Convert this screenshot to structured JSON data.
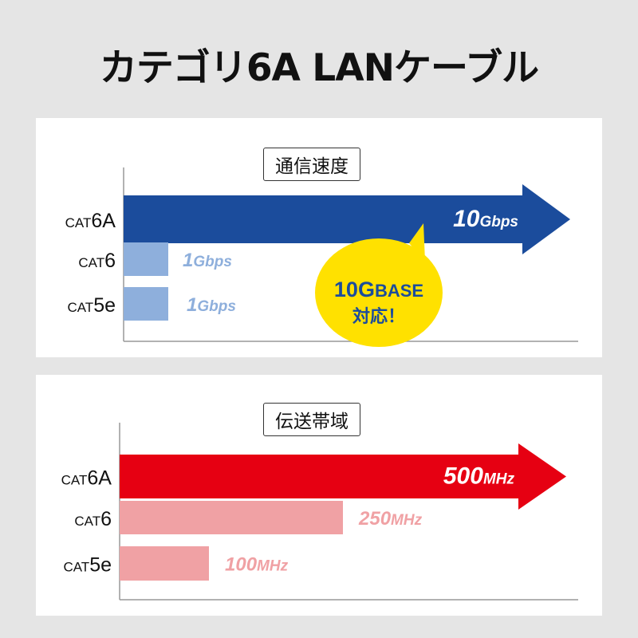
{
  "title": "カテゴリ6A LANケーブル",
  "chart_data": [
    {
      "type": "bar",
      "title": "通信速度",
      "unit": "Gbps",
      "categories": [
        "CAT6A",
        "CAT6",
        "CAT5e"
      ],
      "category_parts": [
        [
          "CAT",
          "6A"
        ],
        [
          "CAT",
          "6"
        ],
        [
          "CAT",
          "5e"
        ]
      ],
      "values": [
        10,
        1,
        1
      ],
      "value_labels": [
        [
          "10",
          "Gbps"
        ],
        [
          "1",
          "Gbps"
        ],
        [
          "1",
          "Gbps"
        ]
      ],
      "colors": [
        "#1b4c9c",
        "#8eafdc",
        "#8eafdc"
      ],
      "label_colors": [
        "#ffffff",
        "#8eafdc",
        "#8eafdc"
      ],
      "callout": {
        "line1a": "10G",
        "line1b": "BASE",
        "line2": "対応！",
        "color": "#ffe100",
        "text_color": "#1b4c9c"
      }
    },
    {
      "type": "bar",
      "title": "伝送帯域",
      "unit": "MHz",
      "categories": [
        "CAT6A",
        "CAT6",
        "CAT5e"
      ],
      "category_parts": [
        [
          "CAT",
          "6A"
        ],
        [
          "CAT",
          "6"
        ],
        [
          "CAT",
          "5e"
        ]
      ],
      "values": [
        500,
        250,
        100
      ],
      "value_labels": [
        [
          "500",
          "MHz"
        ],
        [
          "250",
          "MHz"
        ],
        [
          "100",
          "MHz"
        ]
      ],
      "colors": [
        "#e60012",
        "#f0a1a4",
        "#f0a1a4"
      ],
      "label_colors": [
        "#ffffff",
        "#f0a1a4",
        "#f0a1a4"
      ]
    }
  ]
}
